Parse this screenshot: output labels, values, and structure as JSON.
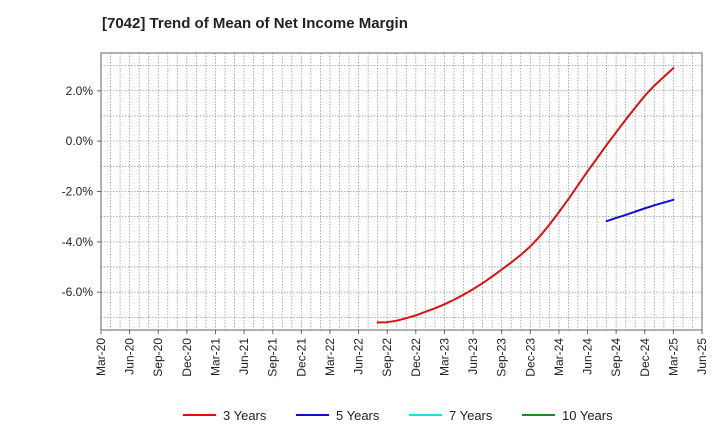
{
  "chart_data": {
    "type": "line",
    "title": "[7042]  Trend of Mean of Net Income Margin",
    "xlabel": "",
    "ylabel": "",
    "x_ticks": [
      "Mar-20",
      "Jun-20",
      "Sep-20",
      "Dec-20",
      "Mar-21",
      "Jun-21",
      "Sep-21",
      "Dec-21",
      "Mar-22",
      "Jun-22",
      "Sep-22",
      "Dec-22",
      "Mar-23",
      "Jun-23",
      "Sep-23",
      "Dec-23",
      "Mar-24",
      "Jun-24",
      "Sep-24",
      "Dec-24",
      "Mar-25",
      "Jun-25"
    ],
    "y_ticks": [
      "2.0%",
      "0.0%",
      "-2.0%",
      "-4.0%",
      "-6.0%"
    ],
    "y_tick_values": [
      2.0,
      0.0,
      -2.0,
      -4.0,
      -6.0
    ],
    "xlim": [
      "Mar-20",
      "Jun-25"
    ],
    "ylim": [
      -7.5,
      3.5
    ],
    "grid": true,
    "legend_position": "bottom",
    "series": [
      {
        "name": "3 Years",
        "color": "#dd1111",
        "x": [
          "Aug-22",
          "Sep-22",
          "Oct-22",
          "Nov-22",
          "Dec-22",
          "Jan-23",
          "Feb-23",
          "Mar-23",
          "Apr-23",
          "May-23",
          "Jun-23",
          "Jul-23",
          "Aug-23",
          "Sep-23",
          "Oct-23",
          "Nov-23",
          "Dec-23",
          "Jan-24",
          "Feb-24",
          "Mar-24",
          "Apr-24",
          "May-24",
          "Jun-24",
          "Jul-24",
          "Aug-24",
          "Sep-24",
          "Oct-24",
          "Nov-24",
          "Dec-24",
          "Jan-25",
          "Feb-25",
          "Mar-25"
        ],
        "values": [
          -7.2,
          -7.19,
          -7.13,
          -7.03,
          -6.92,
          -6.78,
          -6.64,
          -6.48,
          -6.3,
          -6.1,
          -5.88,
          -5.64,
          -5.38,
          -5.1,
          -4.82,
          -4.52,
          -4.18,
          -3.78,
          -3.32,
          -2.82,
          -2.3,
          -1.75,
          -1.2,
          -0.68,
          -0.15,
          0.35,
          0.85,
          1.33,
          1.8,
          2.2,
          2.55,
          2.9
        ]
      },
      {
        "name": "5 Years",
        "color": "#1111cc",
        "x": [
          "Aug-24",
          "Sep-24",
          "Oct-24",
          "Nov-24",
          "Dec-24",
          "Jan-25",
          "Feb-25",
          "Mar-25"
        ],
        "values": [
          -3.18,
          -3.05,
          -2.93,
          -2.8,
          -2.67,
          -2.55,
          -2.44,
          -2.33
        ]
      },
      {
        "name": "7 Years",
        "color": "#22dddd",
        "x": [],
        "values": []
      },
      {
        "name": "10 Years",
        "color": "#228822",
        "x": [],
        "values": []
      }
    ]
  }
}
